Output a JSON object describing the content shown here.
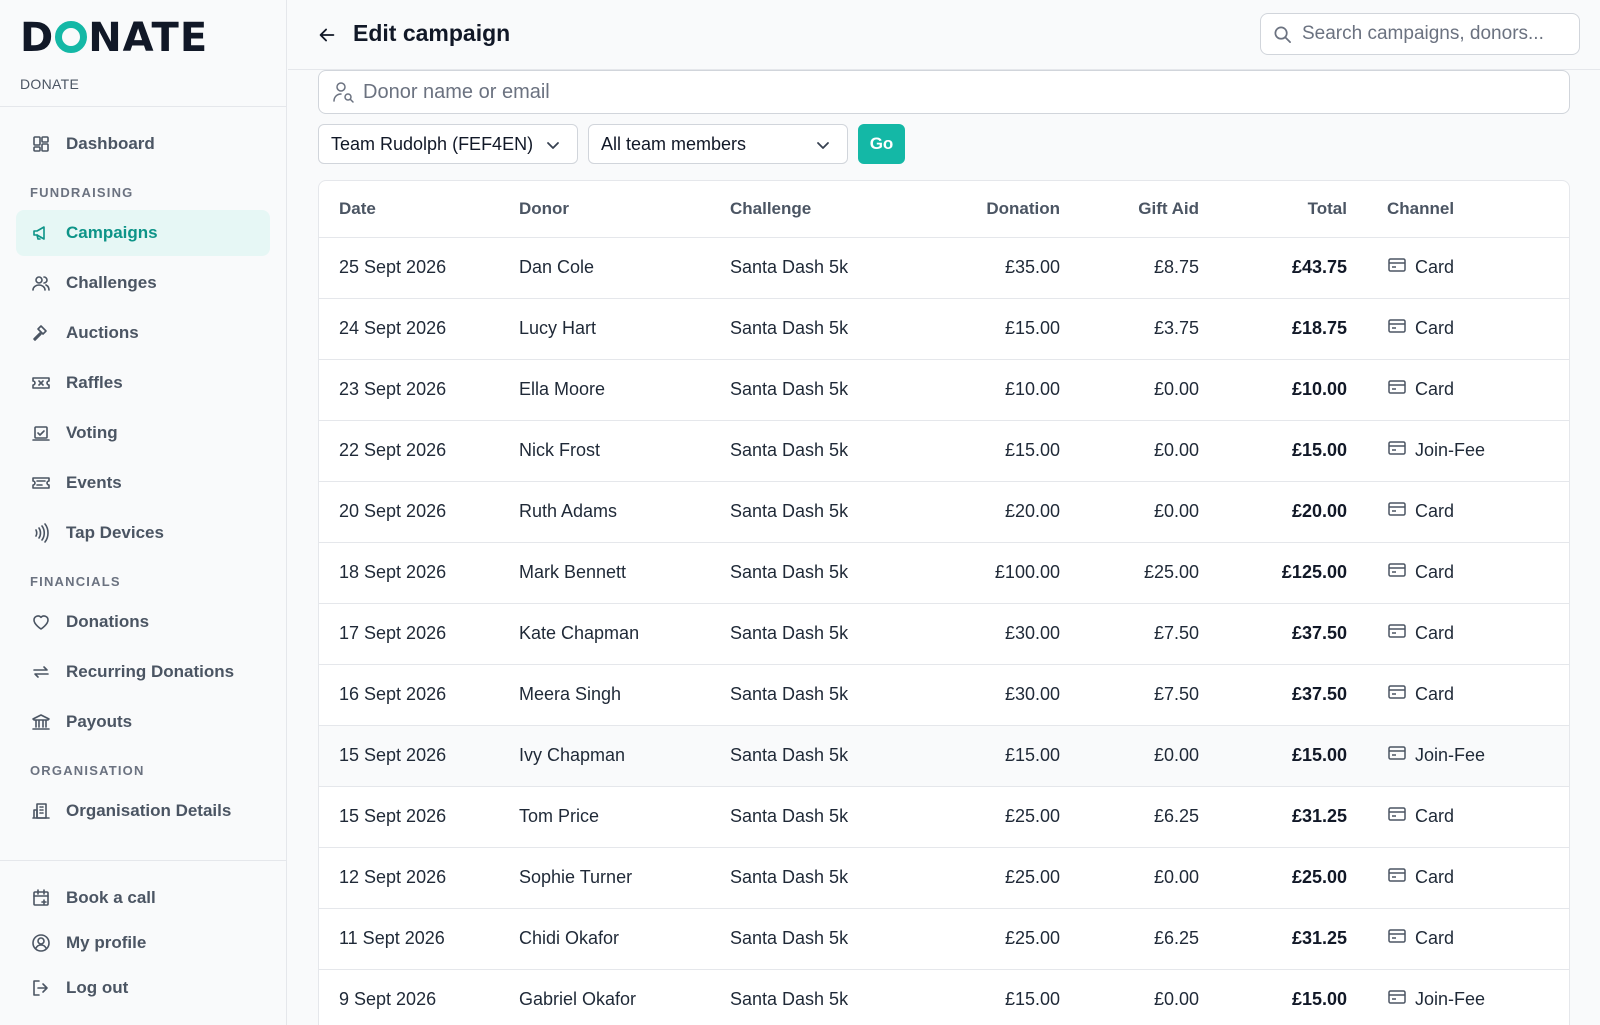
{
  "brand": {
    "logo_text": "DONATE",
    "subtitle": "DONATE",
    "accent": "#14b8a6"
  },
  "sidebar": {
    "dashboard": "Dashboard",
    "sections": {
      "fundraising": "FUNDRAISING",
      "financials": "FINANCIALS",
      "organisation": "ORGANISATION"
    },
    "items": {
      "campaigns": "Campaigns",
      "challenges": "Challenges",
      "auctions": "Auctions",
      "raffles": "Raffles",
      "voting": "Voting",
      "events": "Events",
      "tap_devices": "Tap Devices",
      "donations": "Donations",
      "recurring_donations": "Recurring Donations",
      "payouts": "Payouts",
      "organisation_details": "Organisation Details"
    },
    "bottom": {
      "book_call": "Book a call",
      "my_profile": "My profile",
      "log_out": "Log out"
    }
  },
  "header": {
    "title": "Edit campaign",
    "search_placeholder": "Search campaigns, donors..."
  },
  "filters": {
    "donor_placeholder": "Donor name or email",
    "team_select": "Team Rudolph (FEF4EN)",
    "member_select": "All team members",
    "go_label": "Go"
  },
  "table": {
    "columns": {
      "date": "Date",
      "donor": "Donor",
      "challenge": "Challenge",
      "donation": "Donation",
      "gift_aid": "Gift Aid",
      "total": "Total",
      "channel": "Channel"
    },
    "rows": [
      {
        "date": "25 Sept 2026",
        "donor": "Dan Cole",
        "challenge": "Santa Dash 5k",
        "donation": "£35.00",
        "gift_aid": "£8.75",
        "total": "£43.75",
        "channel": "Card"
      },
      {
        "date": "24 Sept 2026",
        "donor": "Lucy Hart",
        "challenge": "Santa Dash 5k",
        "donation": "£15.00",
        "gift_aid": "£3.75",
        "total": "£18.75",
        "channel": "Card"
      },
      {
        "date": "23 Sept 2026",
        "donor": "Ella Moore",
        "challenge": "Santa Dash 5k",
        "donation": "£10.00",
        "gift_aid": "£0.00",
        "total": "£10.00",
        "channel": "Card"
      },
      {
        "date": "22 Sept 2026",
        "donor": "Nick Frost",
        "challenge": "Santa Dash 5k",
        "donation": "£15.00",
        "gift_aid": "£0.00",
        "total": "£15.00",
        "channel": "Join-Fee"
      },
      {
        "date": "20 Sept 2026",
        "donor": "Ruth Adams",
        "challenge": "Santa Dash 5k",
        "donation": "£20.00",
        "gift_aid": "£0.00",
        "total": "£20.00",
        "channel": "Card"
      },
      {
        "date": "18 Sept 2026",
        "donor": "Mark Bennett",
        "challenge": "Santa Dash 5k",
        "donation": "£100.00",
        "gift_aid": "£25.00",
        "total": "£125.00",
        "channel": "Card"
      },
      {
        "date": "17 Sept 2026",
        "donor": "Kate Chapman",
        "challenge": "Santa Dash 5k",
        "donation": "£30.00",
        "gift_aid": "£7.50",
        "total": "£37.50",
        "channel": "Card"
      },
      {
        "date": "16 Sept 2026",
        "donor": "Meera Singh",
        "challenge": "Santa Dash 5k",
        "donation": "£30.00",
        "gift_aid": "£7.50",
        "total": "£37.50",
        "channel": "Card"
      },
      {
        "date": "15 Sept 2026",
        "donor": "Ivy Chapman",
        "challenge": "Santa Dash 5k",
        "donation": "£15.00",
        "gift_aid": "£0.00",
        "total": "£15.00",
        "channel": "Join-Fee"
      },
      {
        "date": "15 Sept 2026",
        "donor": "Tom Price",
        "challenge": "Santa Dash 5k",
        "donation": "£25.00",
        "gift_aid": "£6.25",
        "total": "£31.25",
        "channel": "Card"
      },
      {
        "date": "12 Sept 2026",
        "donor": "Sophie Turner",
        "challenge": "Santa Dash 5k",
        "donation": "£25.00",
        "gift_aid": "£0.00",
        "total": "£25.00",
        "channel": "Card"
      },
      {
        "date": "11 Sept 2026",
        "donor": "Chidi Okafor",
        "challenge": "Santa Dash 5k",
        "donation": "£25.00",
        "gift_aid": "£6.25",
        "total": "£31.25",
        "channel": "Card"
      },
      {
        "date": "9 Sept 2026",
        "donor": "Gabriel Okafor",
        "challenge": "Santa Dash 5k",
        "donation": "£15.00",
        "gift_aid": "£0.00",
        "total": "£15.00",
        "channel": "Join-Fee"
      }
    ]
  }
}
